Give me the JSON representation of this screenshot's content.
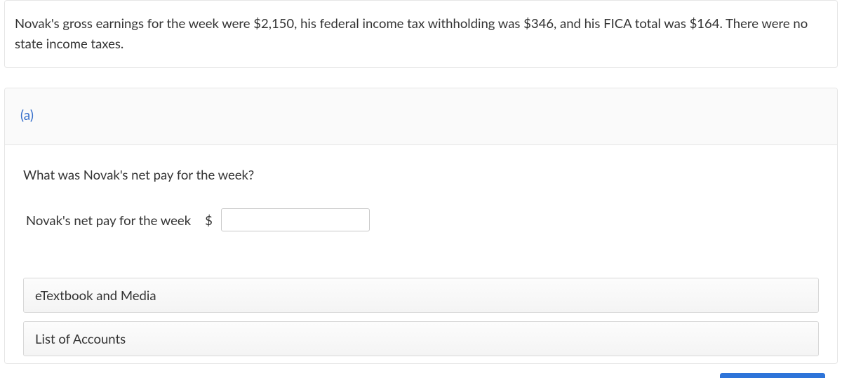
{
  "prompt": {
    "text": "Novak's gross earnings for the week were $2,150, his federal income tax withholding was $346, and his FICA total was $164. There were no state income taxes."
  },
  "part": {
    "label": "(a)",
    "question": "What was Novak's net pay for the week?",
    "answer_label": "Novak's net pay for the week",
    "currency_symbol": "$",
    "answer_value": ""
  },
  "resources": {
    "etextbook": "eTextbook and Media",
    "accounts": "List of Accounts"
  },
  "colors": {
    "link_blue": "#376FCB",
    "accent_blue": "#2E74D9",
    "border_gray": "#e6e6e6",
    "text": "#333333"
  }
}
